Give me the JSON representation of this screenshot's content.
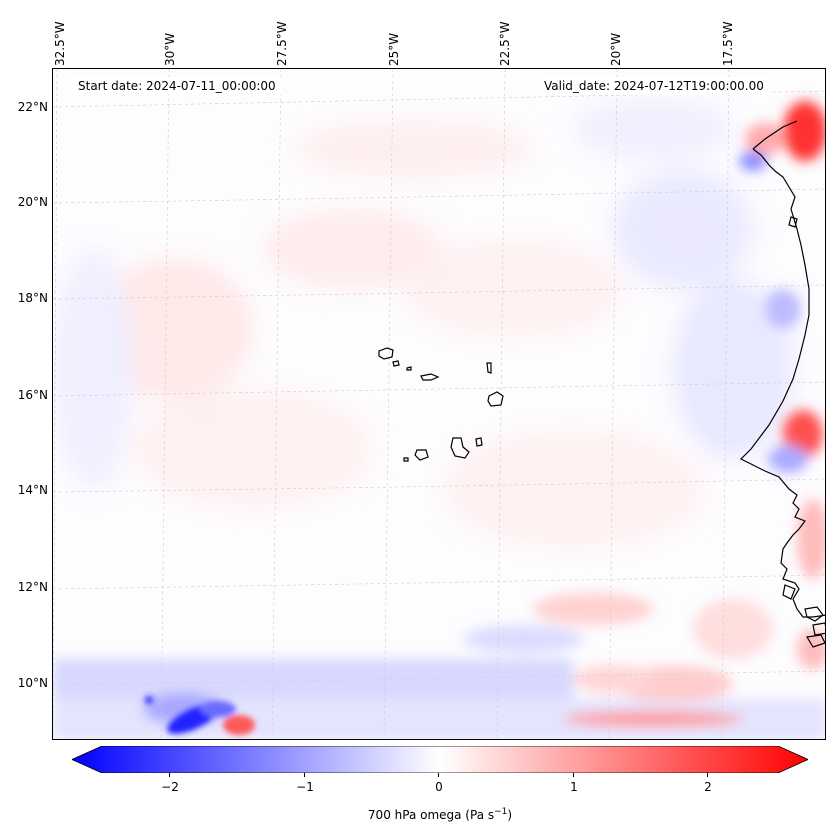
{
  "map": {
    "lon_labels": [
      "32.5°W",
      "30°W",
      "27.5°W",
      "25°W",
      "22.5°W",
      "20°W",
      "17.5°W"
    ],
    "lat_labels": [
      "22°N",
      "20°N",
      "18°N",
      "16°N",
      "14°N",
      "12°N",
      "10°N"
    ],
    "start_date": "Start date: 2024-07-11_00:00:00",
    "valid_date": "Valid_date: 2024-07-12T19:00:00.00",
    "extent": {
      "lon": [
        -32.7,
        -15.5
      ],
      "lat": [
        8.9,
        22.8
      ]
    },
    "grid": true,
    "field": "700 hPa omega",
    "units": "Pa s⁻¹"
  },
  "colorbar": {
    "ticks": [
      "−2",
      "−1",
      "0",
      "1",
      "2"
    ],
    "title": "700 hPa omega (Pa s",
    "title_sup": "−1",
    "title_end": ")",
    "range": [
      -2.6,
      2.6
    ],
    "colormap": "bwr",
    "extend": "both"
  },
  "colors": {
    "neg": "#0000ff",
    "zero": "#ffffff",
    "pos": "#ff0000"
  }
}
